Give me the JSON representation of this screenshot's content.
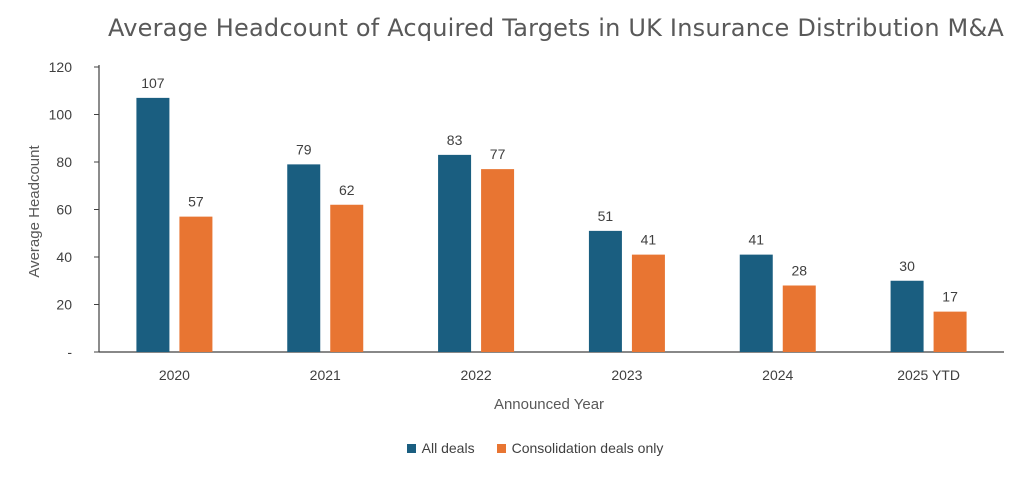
{
  "chart_data": {
    "type": "bar",
    "title": "Average Headcount of Acquired Targets in UK Insurance Distribution M&A",
    "xlabel": "Announced Year",
    "ylabel": "Average Headcount",
    "categories": [
      "2020",
      "2021",
      "2022",
      "2023",
      "2024",
      "2025 YTD"
    ],
    "series": [
      {
        "name": "All deals",
        "color": "#1a5e80",
        "values": [
          107,
          79,
          83,
          51,
          41,
          30
        ]
      },
      {
        "name": "Consolidation deals only",
        "color": "#e87532",
        "values": [
          57,
          62,
          77,
          41,
          28,
          17
        ]
      }
    ],
    "ylim": [
      0,
      120
    ],
    "yticks": [
      0,
      20,
      40,
      60,
      80,
      100,
      120
    ],
    "ytick_labels": [
      "-",
      "20",
      "40",
      "60",
      "80",
      "100",
      "120"
    ],
    "grid": false,
    "legend_position": "bottom"
  }
}
